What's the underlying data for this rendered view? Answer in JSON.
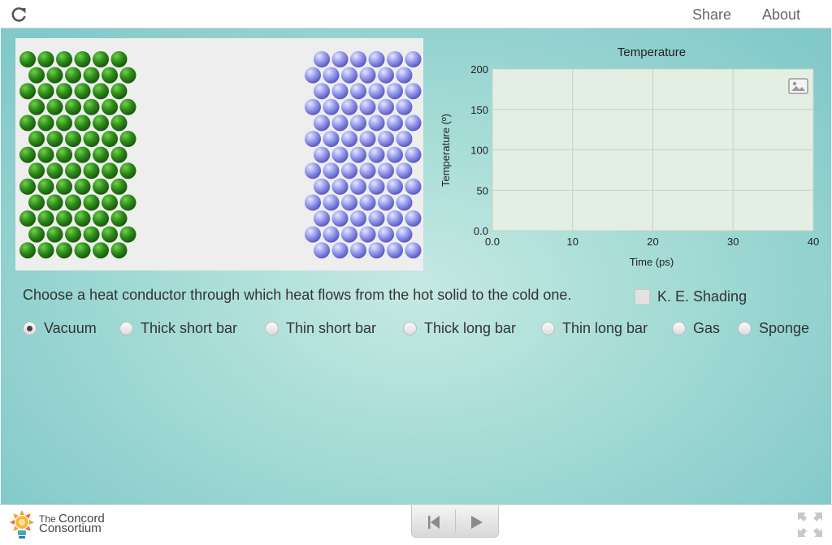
{
  "header": {
    "share_label": "Share",
    "about_label": "About"
  },
  "simulation": {
    "hot_solid_color": "#2e8b1a",
    "cold_solid_color": "#8f90e0",
    "background": "#eeeeee"
  },
  "chart_data": {
    "type": "line",
    "title": "Temperature",
    "xlabel": "Time (ps)",
    "ylabel": "Temperature (º)",
    "xlim": [
      0,
      40
    ],
    "ylim": [
      0,
      200
    ],
    "x_ticks": [
      "0.0",
      "10",
      "20",
      "30",
      "40"
    ],
    "y_ticks": [
      "0.0",
      "50",
      "100",
      "150",
      "200"
    ],
    "grid": true,
    "series": []
  },
  "controls": {
    "prompt": "Choose a heat conductor through which heat flows from the hot solid to the cold one.",
    "ke_shading_label": "K. E. Shading",
    "ke_shading_checked": false,
    "selected": "Vacuum",
    "options": [
      "Vacuum",
      "Thick short bar",
      "Thin short bar",
      "Thick long bar",
      "Thin long bar",
      "Gas",
      "Sponge"
    ]
  },
  "footer": {
    "logo_line1": "The",
    "logo_line2": "Concord",
    "logo_line3": "Consortium"
  }
}
